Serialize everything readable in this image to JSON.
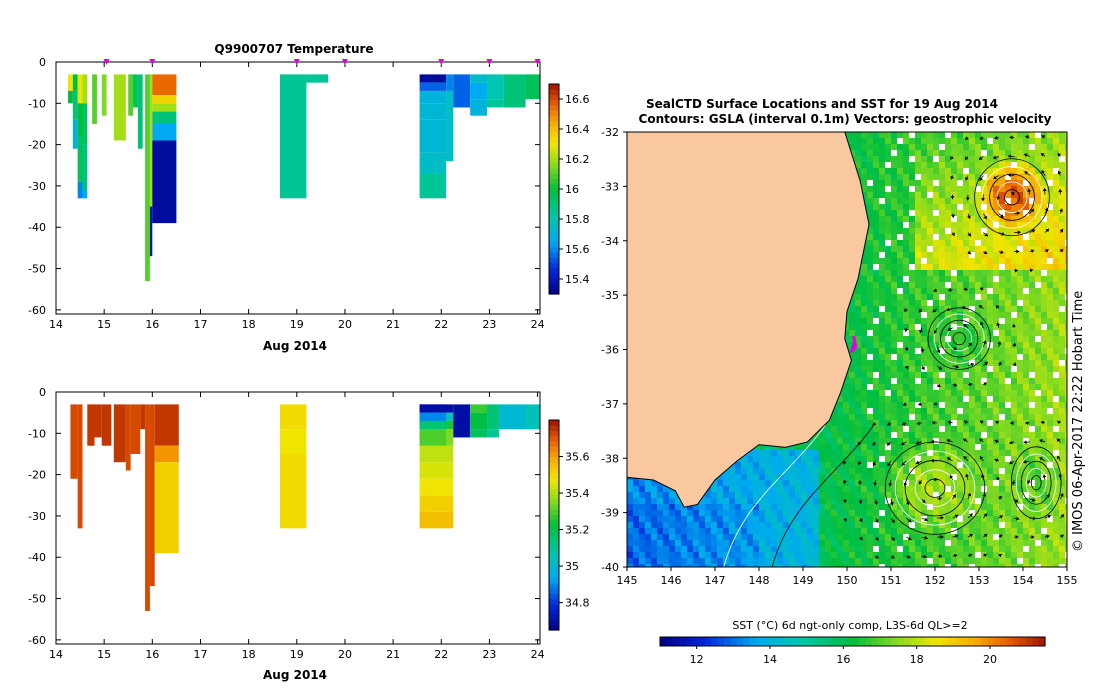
{
  "colors": {
    "land": "#f9c89f",
    "white": "#ffffff",
    "marker": "#e000e0"
  },
  "chart_data": [
    {
      "id": "temperature",
      "type": "heatmap",
      "title": "Q9900707  Temperature",
      "xlabel": "Aug 2014",
      "xlim": [
        14,
        24.05
      ],
      "ylim": [
        -61,
        0
      ],
      "xticks": [
        "14",
        "15",
        "16",
        "17",
        "18",
        "19",
        "20",
        "21",
        "22",
        "23",
        "24"
      ],
      "yticks": [
        "0",
        "-10",
        "-20",
        "-30",
        "-40",
        "-50",
        "-60"
      ],
      "colorbar": {
        "range": [
          15.3,
          16.7
        ],
        "ticks": [
          "15.4",
          "15.6",
          "15.8",
          "16",
          "16.2",
          "16.4",
          "16.6"
        ]
      },
      "profile_markers": [
        15.05,
        16.0,
        19.0,
        20.0,
        22.0,
        23.0,
        24.0
      ],
      "columns": [
        {
          "x0": 14.25,
          "x1": 14.35,
          "cells": [
            [
              -3,
              -7,
              16.3
            ],
            [
              -7,
              -10,
              16.0
            ]
          ]
        },
        {
          "x0": 14.35,
          "x1": 14.45,
          "cells": [
            [
              -3,
              -7,
              16.0
            ],
            [
              -7,
              -14,
              15.9
            ],
            [
              -14,
              -21,
              15.7
            ]
          ]
        },
        {
          "x0": 14.45,
          "x1": 14.55,
          "cells": [
            [
              -3,
              -10,
              16.3
            ],
            [
              -10,
              -18,
              16.0
            ],
            [
              -18,
              -29,
              15.95
            ],
            [
              -29,
              -33,
              15.6
            ]
          ]
        },
        {
          "x0": 14.55,
          "x1": 14.65,
          "cells": [
            [
              -3,
              -10,
              16.2
            ],
            [
              -10,
              -20,
              15.95
            ],
            [
              -20,
              -31,
              15.9
            ],
            [
              -31,
              -33,
              15.65
            ]
          ]
        },
        {
          "x0": 14.75,
          "x1": 14.85,
          "cells": [
            [
              -3,
              -15,
              16.1
            ]
          ]
        },
        {
          "x0": 14.95,
          "x1": 15.05,
          "cells": [
            [
              -3,
              -13,
              16.15
            ]
          ]
        },
        {
          "x0": 15.2,
          "x1": 15.45,
          "cells": [
            [
              -3,
              -19,
              16.2
            ]
          ]
        },
        {
          "x0": 15.5,
          "x1": 15.6,
          "cells": [
            [
              -3,
              -13,
              16.1
            ]
          ]
        },
        {
          "x0": 15.6,
          "x1": 15.7,
          "cells": [
            [
              -3,
              -11,
              15.95
            ]
          ]
        },
        {
          "x0": 15.7,
          "x1": 15.8,
          "cells": [
            [
              -3,
              -21,
              15.9
            ]
          ]
        },
        {
          "x0": 15.85,
          "x1": 15.95,
          "cells": [
            [
              -3,
              -53,
              16.1
            ]
          ]
        },
        {
          "x0": 15.95,
          "x1": 16.0,
          "cells": [
            [
              -3,
              -35,
              16.2
            ],
            [
              -35,
              -47,
              15.4
            ]
          ]
        },
        {
          "x0": 16.0,
          "x1": 16.5,
          "cells": [
            [
              -3,
              -8,
              16.55
            ],
            [
              -8,
              -10,
              16.35
            ],
            [
              -10,
              -12,
              16.2
            ],
            [
              -12,
              -15,
              15.9
            ],
            [
              -15,
              -19,
              15.65
            ],
            [
              -19,
              -39,
              15.35
            ]
          ]
        },
        {
          "x0": 18.65,
          "x1": 19.2,
          "cells": [
            [
              -3,
              -33,
              15.85
            ]
          ]
        },
        {
          "x0": 19.2,
          "x1": 19.65,
          "cells": [
            [
              -3,
              -5,
              15.85
            ]
          ]
        },
        {
          "x0": 21.55,
          "x1": 22.1,
          "cells": [
            [
              -3,
              -5,
              15.35
            ],
            [
              -5,
              -7,
              15.55
            ],
            [
              -7,
              -10,
              15.7
            ],
            [
              -10,
              -14,
              15.72
            ],
            [
              -14,
              -22,
              15.72
            ],
            [
              -22,
              -27,
              15.75
            ],
            [
              -27,
              -33,
              15.85
            ]
          ]
        },
        {
          "x0": 22.1,
          "x1": 22.25,
          "cells": [
            [
              -3,
              -7,
              15.6
            ],
            [
              -7,
              -24,
              15.75
            ]
          ]
        },
        {
          "x0": 22.25,
          "x1": 22.6,
          "cells": [
            [
              -3,
              -11,
              15.55
            ]
          ]
        },
        {
          "x0": 22.6,
          "x1": 22.95,
          "cells": [
            [
              -3,
              -5,
              15.75
            ],
            [
              -5,
              -9,
              15.65
            ],
            [
              -9,
              -13,
              15.7
            ]
          ]
        },
        {
          "x0": 22.95,
          "x1": 23.3,
          "cells": [
            [
              -3,
              -9,
              15.8
            ],
            [
              -9,
              -11,
              15.85
            ]
          ]
        },
        {
          "x0": 23.3,
          "x1": 23.75,
          "cells": [
            [
              -3,
              -11,
              15.9
            ]
          ]
        },
        {
          "x0": 23.75,
          "x1": 24.05,
          "cells": [
            [
              -3,
              -9,
              15.95
            ]
          ]
        }
      ]
    },
    {
      "id": "salinity",
      "type": "heatmap",
      "title": "",
      "xlabel": "Aug 2014",
      "xlim": [
        14,
        24.05
      ],
      "ylim": [
        -61,
        0
      ],
      "xticks": [
        "14",
        "15",
        "16",
        "17",
        "18",
        "19",
        "20",
        "21",
        "22",
        "23",
        "24"
      ],
      "yticks": [
        "0",
        "-10",
        "-20",
        "-30",
        "-40",
        "-50",
        "-60"
      ],
      "colorbar": {
        "range": [
          34.65,
          35.8
        ],
        "ticks": [
          "34.8",
          "35",
          "35.2",
          "35.4",
          "35.6"
        ]
      },
      "columns": [
        {
          "x0": 14.3,
          "x1": 14.45,
          "cells": [
            [
              -3,
              -21,
              35.72
            ]
          ]
        },
        {
          "x0": 14.45,
          "x1": 14.55,
          "cells": [
            [
              -3,
              -33,
              35.72
            ]
          ]
        },
        {
          "x0": 14.65,
          "x1": 14.8,
          "cells": [
            [
              -3,
              -13,
              35.75
            ]
          ]
        },
        {
          "x0": 14.8,
          "x1": 14.95,
          "cells": [
            [
              -3,
              -11,
              35.75
            ]
          ]
        },
        {
          "x0": 14.95,
          "x1": 15.15,
          "cells": [
            [
              -3,
              -13,
              35.75
            ]
          ]
        },
        {
          "x0": 15.2,
          "x1": 15.45,
          "cells": [
            [
              -3,
              -17,
              35.75
            ]
          ]
        },
        {
          "x0": 15.45,
          "x1": 15.55,
          "cells": [
            [
              -3,
              -19,
              35.72
            ]
          ]
        },
        {
          "x0": 15.55,
          "x1": 15.75,
          "cells": [
            [
              -3,
              -15,
              35.72
            ]
          ]
        },
        {
          "x0": 15.75,
          "x1": 15.85,
          "cells": [
            [
              -3,
              -9,
              35.75
            ]
          ]
        },
        {
          "x0": 15.85,
          "x1": 15.95,
          "cells": [
            [
              -3,
              -53,
              35.72
            ]
          ]
        },
        {
          "x0": 15.95,
          "x1": 16.05,
          "cells": [
            [
              -3,
              -47,
              35.72
            ]
          ]
        },
        {
          "x0": 16.05,
          "x1": 16.55,
          "cells": [
            [
              -3,
              -13,
              35.75
            ],
            [
              -13,
              -17,
              35.62
            ],
            [
              -17,
              -39,
              35.52
            ]
          ]
        },
        {
          "x0": 18.65,
          "x1": 19.2,
          "cells": [
            [
              -3,
              -9,
              35.5
            ],
            [
              -9,
              -15,
              35.48
            ],
            [
              -15,
              -33,
              35.5
            ]
          ]
        },
        {
          "x0": 21.55,
          "x1": 22.25,
          "cells": [
            [
              -3,
              -5,
              34.7
            ],
            [
              -5,
              -7,
              35.05
            ],
            [
              -7,
              -9,
              35.25
            ],
            [
              -9,
              -13,
              35.35
            ],
            [
              -13,
              -17,
              35.42
            ],
            [
              -17,
              -21,
              35.45
            ],
            [
              -21,
              -25,
              35.48
            ],
            [
              -25,
              -29,
              35.52
            ],
            [
              -29,
              -33,
              35.55
            ]
          ]
        },
        {
          "x0": 21.55,
          "x1": 22.1,
          "cells": [
            [
              -3,
              -5,
              34.7
            ],
            [
              -5,
              -7,
              34.9
            ],
            [
              -7,
              -9,
              35.15
            ],
            [
              -9,
              -13,
              35.3
            ]
          ]
        },
        {
          "x0": 22.25,
          "x1": 22.6,
          "cells": [
            [
              -3,
              -11,
              34.7
            ]
          ]
        },
        {
          "x0": 22.6,
          "x1": 22.95,
          "cells": [
            [
              -3,
              -5,
              35.28
            ],
            [
              -5,
              -9,
              35.22
            ],
            [
              -9,
              -11,
              35.18
            ]
          ]
        },
        {
          "x0": 22.95,
          "x1": 23.2,
          "cells": [
            [
              -3,
              -9,
              35.15
            ],
            [
              -9,
              -11,
              35.1
            ]
          ]
        },
        {
          "x0": 23.2,
          "x1": 23.75,
          "cells": [
            [
              -3,
              -9,
              35.0
            ]
          ]
        },
        {
          "x0": 23.75,
          "x1": 24.05,
          "cells": [
            [
              -3,
              -9,
              35.05
            ]
          ]
        }
      ]
    },
    {
      "id": "sst_map",
      "type": "heatmap",
      "title": "SealCTD Surface Locations and SST for 19 Aug 2014",
      "subtitle": "Contours: GSLA (interval 0.1m) Vectors: geostrophic velocity",
      "xlim": [
        145,
        155
      ],
      "ylim": [
        -40,
        -32
      ],
      "xticks": [
        "145",
        "146",
        "147",
        "148",
        "149",
        "150",
        "151",
        "152",
        "153",
        "154",
        "155"
      ],
      "yticks": [
        "-32",
        "-33",
        "-34",
        "-35",
        "-36",
        "-37",
        "-38",
        "-39",
        "-40"
      ],
      "colorbar": {
        "range": [
          11,
          21.5
        ],
        "ticks": [
          "12",
          "14",
          "16",
          "18",
          "20"
        ],
        "label": "SST (°C) 6d ngt-only comp, L3S-6d QL>=2"
      },
      "side_label": "© IMOS 06-Apr-2017 22:22 Hobart Time",
      "seal_track": [
        [
          150.15,
          -35.75
        ],
        [
          150.2,
          -35.95
        ],
        [
          150.1,
          -36.05
        ],
        [
          150.18,
          -35.85
        ]
      ],
      "eddies": [
        {
          "lon": 153.75,
          "lat": -33.2,
          "rx": 0.9,
          "ry": 0.75,
          "sst": 20.6
        },
        {
          "lon": 152.55,
          "lat": -35.8,
          "rx": 0.75,
          "ry": 0.6,
          "sst": 16.6
        },
        {
          "lon": 152.0,
          "lat": -38.55,
          "rx": 1.2,
          "ry": 0.9,
          "sst": 17.8
        },
        {
          "lon": 154.3,
          "lat": -38.45,
          "rx": 0.6,
          "ry": 0.7,
          "sst": 17.0
        }
      ]
    }
  ]
}
